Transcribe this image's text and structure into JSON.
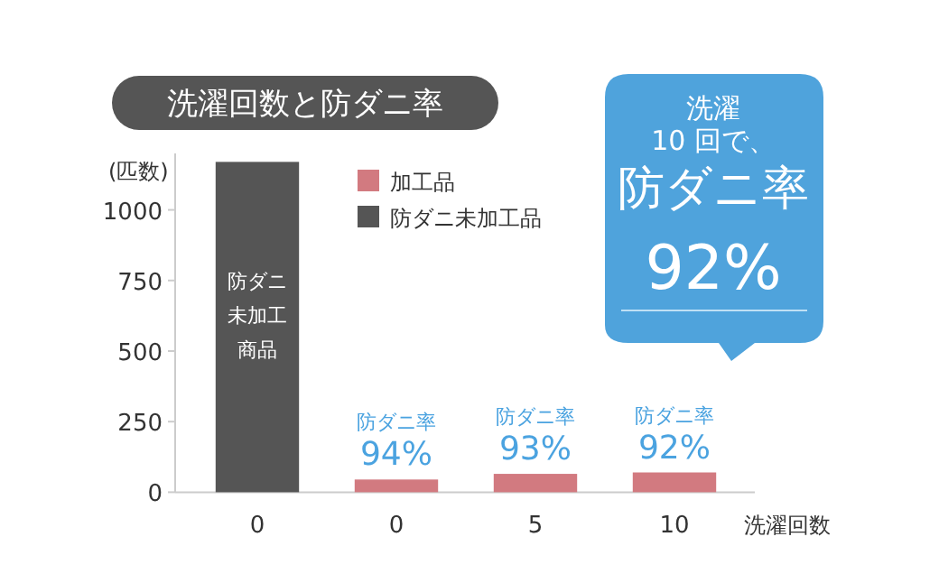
{
  "chart_data": {
    "type": "bar",
    "title": "洗濯回数と防ダニ率",
    "ylabel": "(匹数)",
    "xlabel": "洗濯回数",
    "categories": [
      "0",
      "0",
      "5",
      "10"
    ],
    "series": [
      {
        "name": "加工品",
        "color": "#d27a80",
        "values": [
          null,
          45,
          65,
          70
        ],
        "value_labels": [
          null,
          "防ダニ率\n94%",
          "防ダニ率\n93%",
          "防ダニ率\n92%"
        ]
      },
      {
        "name": "防ダニ未加工品",
        "color": "#555555",
        "values": [
          1170,
          null,
          null,
          null
        ],
        "value_labels": [
          "防ダニ未加工商品",
          null,
          null,
          null
        ]
      }
    ],
    "ylim": [
      0,
      1200
    ],
    "yticks": [
      0,
      250,
      500,
      750,
      1000
    ],
    "grid": false,
    "legend": "top",
    "annotations": [
      "洗濯",
      "10 回で、",
      "防ダニ率",
      "92%"
    ]
  }
}
